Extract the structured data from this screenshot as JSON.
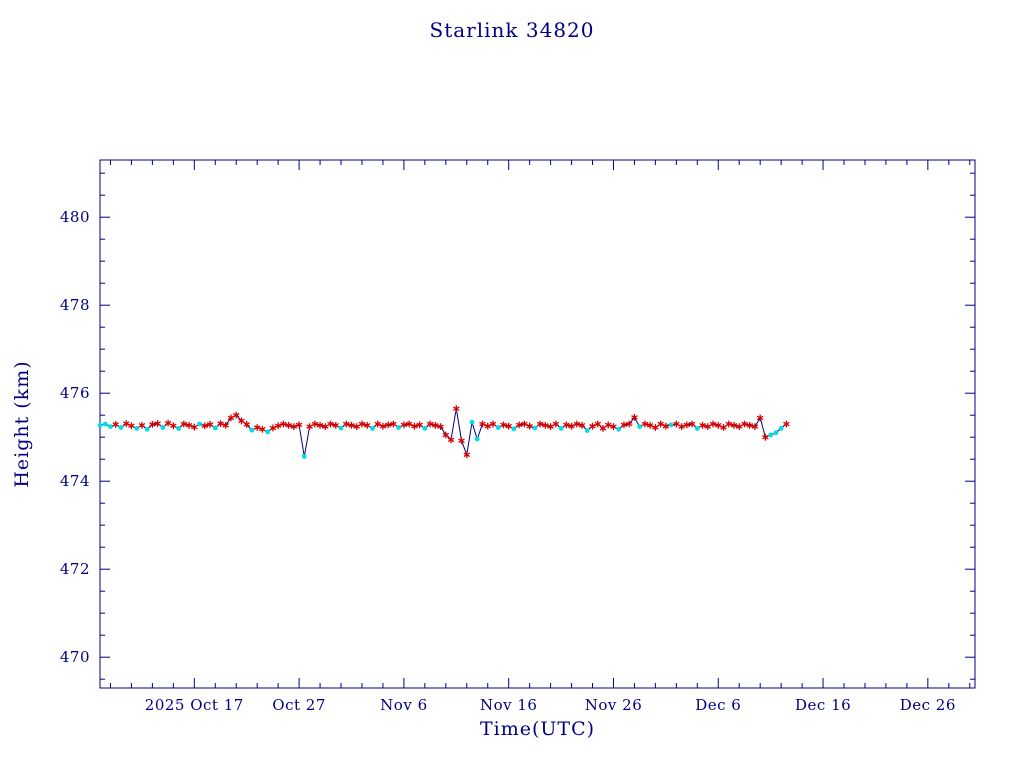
{
  "chart_data": {
    "type": "line",
    "title": "Starlink 34820",
    "xlabel": "Time(UTC)",
    "ylabel": "Height (km)",
    "x_axis": {
      "range_days": [
        0,
        83.5
      ],
      "minor_tick_step_days": 2,
      "major_ticks": [
        {
          "day": 9,
          "label": "2025 Oct 17"
        },
        {
          "day": 19,
          "label": "Oct 27"
        },
        {
          "day": 29,
          "label": "Nov 6"
        },
        {
          "day": 39,
          "label": "Nov 16"
        },
        {
          "day": 49,
          "label": "Nov 26"
        },
        {
          "day": 59,
          "label": "Dec 6"
        },
        {
          "day": 69,
          "label": "Dec 16"
        },
        {
          "day": 79,
          "label": "Dec 26"
        }
      ]
    },
    "y_axis": {
      "range": [
        469.3,
        481.3
      ],
      "minor_tick_step": 0.5,
      "major_ticks": [
        470,
        472,
        474,
        476,
        478,
        480
      ]
    },
    "colors": {
      "axis": "#000080",
      "line": "#000080",
      "red_marker": "#d40000",
      "cyan_marker": "#00dde6",
      "text": "#000080"
    },
    "series_legend": [
      {
        "name": "observation-red",
        "marker": "asterisk"
      },
      {
        "name": "observation-cyan",
        "marker": "dot"
      }
    ],
    "points": [
      [
        0,
        475.27,
        "c"
      ],
      [
        0.5,
        475.3,
        "c"
      ],
      [
        1,
        475.24,
        "c"
      ],
      [
        1.5,
        475.29,
        "r"
      ],
      [
        2,
        475.22,
        "c"
      ],
      [
        2.5,
        475.31,
        "r"
      ],
      [
        3,
        475.26,
        "r"
      ],
      [
        3.5,
        475.2,
        "c"
      ],
      [
        4,
        475.27,
        "r"
      ],
      [
        4.5,
        475.18,
        "c"
      ],
      [
        5,
        475.29,
        "r"
      ],
      [
        5.5,
        475.31,
        "r"
      ],
      [
        6,
        475.22,
        "c"
      ],
      [
        6.5,
        475.32,
        "r"
      ],
      [
        7,
        475.26,
        "r"
      ],
      [
        7.5,
        475.2,
        "c"
      ],
      [
        8,
        475.3,
        "r"
      ],
      [
        8.5,
        475.27,
        "r"
      ],
      [
        9,
        475.23,
        "r"
      ],
      [
        9.5,
        475.3,
        "c"
      ],
      [
        10,
        475.26,
        "r"
      ],
      [
        10.5,
        475.29,
        "r"
      ],
      [
        11,
        475.21,
        "c"
      ],
      [
        11.5,
        475.31,
        "r"
      ],
      [
        12,
        475.27,
        "r"
      ],
      [
        12.5,
        475.44,
        "r"
      ],
      [
        13,
        475.5,
        "r"
      ],
      [
        13.5,
        475.37,
        "r"
      ],
      [
        14,
        475.29,
        "r"
      ],
      [
        14.5,
        475.16,
        "c"
      ],
      [
        15,
        475.22,
        "r"
      ],
      [
        15.5,
        475.18,
        "r"
      ],
      [
        16,
        475.12,
        "c"
      ],
      [
        16.5,
        475.21,
        "r"
      ],
      [
        17,
        475.26,
        "r"
      ],
      [
        17.5,
        475.3,
        "r"
      ],
      [
        18,
        475.27,
        "r"
      ],
      [
        18.5,
        475.24,
        "r"
      ],
      [
        19,
        475.28,
        "r"
      ],
      [
        19.5,
        474.56,
        "c"
      ],
      [
        20,
        475.24,
        "r"
      ],
      [
        20.5,
        475.3,
        "r"
      ],
      [
        21,
        475.27,
        "r"
      ],
      [
        21.5,
        475.24,
        "r"
      ],
      [
        22,
        475.3,
        "r"
      ],
      [
        22.5,
        475.27,
        "r"
      ],
      [
        23,
        475.21,
        "c"
      ],
      [
        23.5,
        475.3,
        "r"
      ],
      [
        24,
        475.27,
        "r"
      ],
      [
        24.5,
        475.24,
        "r"
      ],
      [
        25,
        475.3,
        "r"
      ],
      [
        25.5,
        475.27,
        "r"
      ],
      [
        26,
        475.2,
        "c"
      ],
      [
        26.5,
        475.3,
        "r"
      ],
      [
        27,
        475.25,
        "r"
      ],
      [
        27.5,
        475.28,
        "r"
      ],
      [
        28,
        475.3,
        "r"
      ],
      [
        28.5,
        475.22,
        "c"
      ],
      [
        29,
        475.28,
        "r"
      ],
      [
        29.5,
        475.3,
        "r"
      ],
      [
        30,
        475.25,
        "r"
      ],
      [
        30.5,
        475.28,
        "r"
      ],
      [
        31,
        475.2,
        "c"
      ],
      [
        31.5,
        475.3,
        "r"
      ],
      [
        32,
        475.27,
        "r"
      ],
      [
        32.5,
        475.24,
        "r"
      ],
      [
        33,
        475.05,
        "r"
      ],
      [
        33.5,
        474.94,
        "r"
      ],
      [
        34,
        475.65,
        "r"
      ],
      [
        34.5,
        474.92,
        "r"
      ],
      [
        35,
        474.6,
        "r"
      ],
      [
        35.5,
        475.34,
        "c"
      ],
      [
        36,
        474.96,
        "c"
      ],
      [
        36.5,
        475.3,
        "r"
      ],
      [
        37,
        475.25,
        "r"
      ],
      [
        37.5,
        475.3,
        "r"
      ],
      [
        38,
        475.22,
        "c"
      ],
      [
        38.5,
        475.28,
        "r"
      ],
      [
        39,
        475.25,
        "r"
      ],
      [
        39.5,
        475.19,
        "c"
      ],
      [
        40,
        475.28,
        "r"
      ],
      [
        40.5,
        475.3,
        "r"
      ],
      [
        41,
        475.25,
        "r"
      ],
      [
        41.5,
        475.21,
        "c"
      ],
      [
        42,
        475.3,
        "r"
      ],
      [
        42.5,
        475.27,
        "r"
      ],
      [
        43,
        475.24,
        "r"
      ],
      [
        43.5,
        475.3,
        "r"
      ],
      [
        44,
        475.2,
        "c"
      ],
      [
        44.5,
        475.28,
        "r"
      ],
      [
        45,
        475.25,
        "r"
      ],
      [
        45.5,
        475.3,
        "r"
      ],
      [
        46,
        475.27,
        "r"
      ],
      [
        46.5,
        475.15,
        "c"
      ],
      [
        47,
        475.25,
        "r"
      ],
      [
        47.5,
        475.3,
        "r"
      ],
      [
        48,
        475.2,
        "r"
      ],
      [
        48.5,
        475.28,
        "r"
      ],
      [
        49,
        475.24,
        "r"
      ],
      [
        49.5,
        475.18,
        "c"
      ],
      [
        50,
        475.28,
        "r"
      ],
      [
        50.5,
        475.3,
        "r"
      ],
      [
        51,
        475.45,
        "r"
      ],
      [
        51.5,
        475.24,
        "c"
      ],
      [
        52,
        475.3,
        "r"
      ],
      [
        52.5,
        475.27,
        "r"
      ],
      [
        53,
        475.22,
        "r"
      ],
      [
        53.5,
        475.3,
        "r"
      ],
      [
        54,
        475.25,
        "r"
      ],
      [
        54.5,
        475.28,
        "c"
      ],
      [
        55,
        475.3,
        "r"
      ],
      [
        55.5,
        475.24,
        "r"
      ],
      [
        56,
        475.28,
        "r"
      ],
      [
        56.5,
        475.3,
        "r"
      ],
      [
        57,
        475.2,
        "c"
      ],
      [
        57.5,
        475.27,
        "r"
      ],
      [
        58,
        475.24,
        "r"
      ],
      [
        58.5,
        475.3,
        "r"
      ],
      [
        59,
        475.27,
        "r"
      ],
      [
        59.5,
        475.22,
        "r"
      ],
      [
        60,
        475.3,
        "r"
      ],
      [
        60.5,
        475.27,
        "r"
      ],
      [
        61,
        475.24,
        "r"
      ],
      [
        61.5,
        475.3,
        "r"
      ],
      [
        62,
        475.27,
        "r"
      ],
      [
        62.5,
        475.24,
        "r"
      ],
      [
        63,
        475.44,
        "r"
      ],
      [
        63.5,
        475.0,
        "r"
      ],
      [
        64,
        475.05,
        "c"
      ],
      [
        64.5,
        475.1,
        "c"
      ],
      [
        65,
        475.2,
        "c"
      ],
      [
        65.5,
        475.3,
        "r"
      ]
    ]
  }
}
